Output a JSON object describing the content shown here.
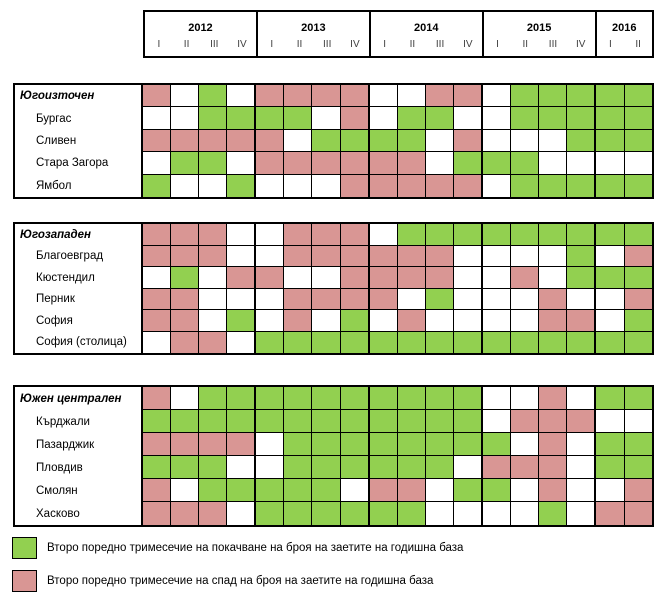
{
  "colors": {
    "G": "#92D050",
    "P": "#D99694",
    "W": "#FFFFFF",
    "border": "#000000"
  },
  "header": {
    "years": [
      {
        "label": "2012",
        "quarters": [
          "I",
          "II",
          "III",
          "IV"
        ]
      },
      {
        "label": "2013",
        "quarters": [
          "I",
          "II",
          "III",
          "IV"
        ]
      },
      {
        "label": "2014",
        "quarters": [
          "I",
          "II",
          "III",
          "IV"
        ]
      },
      {
        "label": "2015",
        "quarters": [
          "I",
          "II",
          "III",
          "IV"
        ]
      },
      {
        "label": "2016",
        "quarters": [
          "I",
          "II"
        ]
      }
    ]
  },
  "chart_data": {
    "type": "heatmap",
    "columns": [
      "2012-I",
      "2012-II",
      "2012-III",
      "2012-IV",
      "2013-I",
      "2013-II",
      "2013-III",
      "2013-IV",
      "2014-I",
      "2014-II",
      "2014-III",
      "2014-IV",
      "2015-I",
      "2015-II",
      "2015-III",
      "2015-IV",
      "2016-I",
      "2016-II"
    ],
    "cell_codes": {
      "G": "Второ поредно тримесечие на покачване на броя на заетите на годишна база",
      "P": "Второ поредно тримесечие на спад на броя на заетите на годишна база",
      "W": ""
    },
    "groups": [
      {
        "rows": [
          {
            "label": "Югоизточен",
            "region_header": true,
            "cells": "PWGWPPPPWWPPWGGGGG"
          },
          {
            "label": "Бургас",
            "region_header": false,
            "cells": "WWGGGGWPWGGWWGGGGG"
          },
          {
            "label": "Сливен",
            "region_header": false,
            "cells": "PPPPPWGGGGWPWWWGGG"
          },
          {
            "label": "Стара Загора",
            "region_header": false,
            "cells": "WGGWPPPPPPWGGGWWWW"
          },
          {
            "label": "Ямбол",
            "region_header": false,
            "cells": "GWWGWWWPPPPPWGGGGG"
          }
        ]
      },
      {
        "rows": [
          {
            "label": "Югозападен",
            "region_header": true,
            "cells": "PPPWWPPPWGGGGGGGGG"
          },
          {
            "label": "Благоевград",
            "region_header": false,
            "cells": "PPPWWPPPPPPWWWWGWP"
          },
          {
            "label": "Кюстендил",
            "region_header": false,
            "cells": "WGWPPWWPPPPWWPWGGG"
          },
          {
            "label": "Перник",
            "region_header": false,
            "cells": "PPWWWPPPPWGWWWPWWP"
          },
          {
            "label": "София",
            "region_header": false,
            "cells": "PPWGWPWGWPWWWWPPWG"
          },
          {
            "label": "София (столица)",
            "region_header": false,
            "cells": "WPPWGGGGGGGGGGGGGG"
          }
        ]
      },
      {
        "rows": [
          {
            "label": "Южен централен",
            "region_header": true,
            "cells": "PWGGGGGGGGGGWWPWGG"
          },
          {
            "label": "Кърджали",
            "region_header": false,
            "cells": "GGGGGGGGGGGGWPPPWW"
          },
          {
            "label": "Пазарджик",
            "region_header": false,
            "cells": "PPPPWGGGGGGGGWPWGG"
          },
          {
            "label": "Пловдив",
            "region_header": false,
            "cells": "GGGWWGGGGGGWPPPWGG"
          },
          {
            "label": "Смолян",
            "region_header": false,
            "cells": "PWGGGGGWPPWGGWPWWP"
          },
          {
            "label": "Хасково",
            "region_header": false,
            "cells": "PPPWGGGGGGWWWWGWPP"
          }
        ]
      }
    ]
  },
  "legend": {
    "items": [
      {
        "code": "G",
        "label": "Второ поредно тримесечие на покачване на броя на заетите на годишна база"
      },
      {
        "code": "P",
        "label": "Второ поредно тримесечие на спад на броя на заетите на годишна база"
      }
    ]
  }
}
